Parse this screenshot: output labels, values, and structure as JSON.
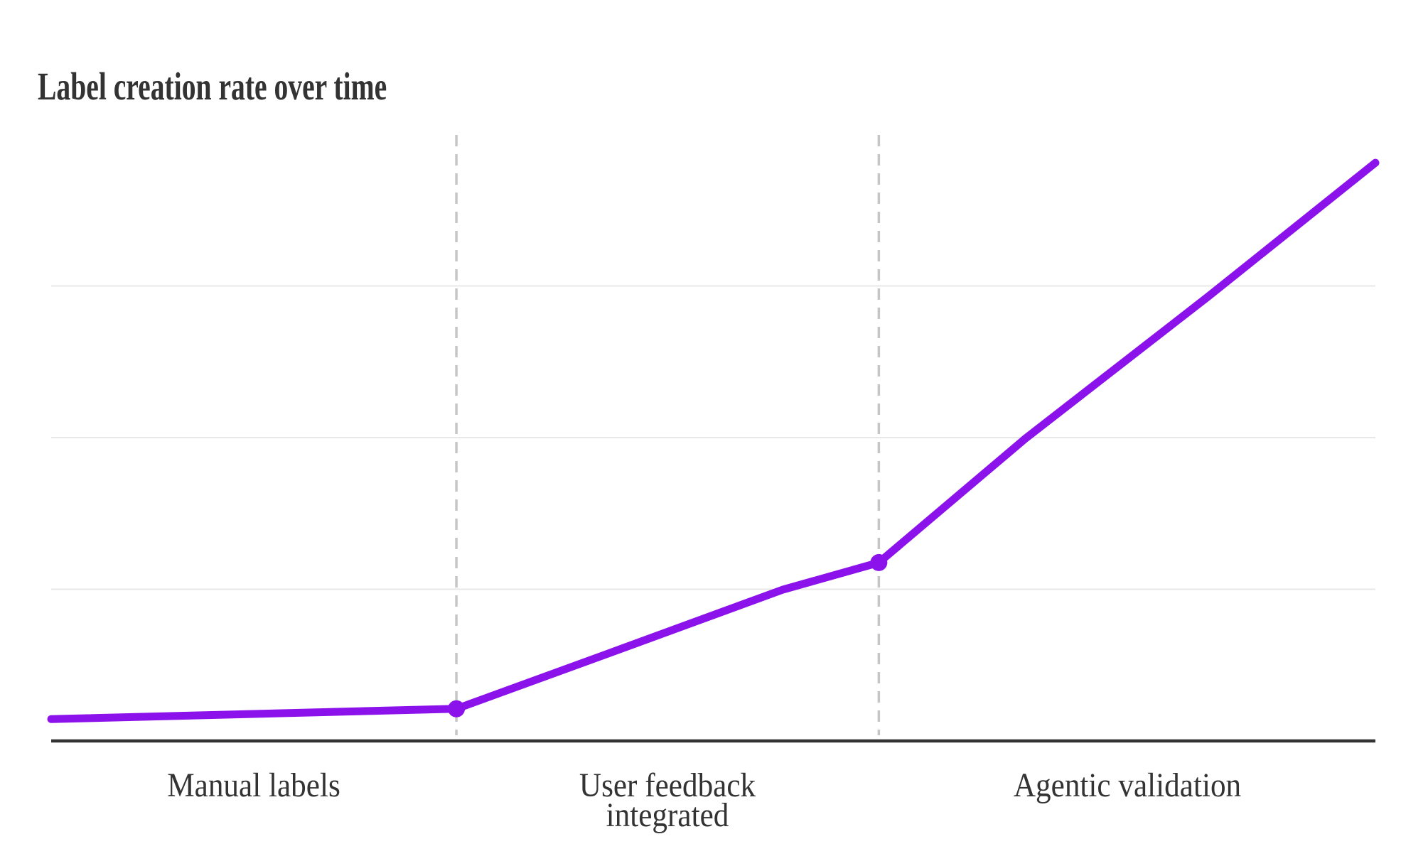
{
  "chart_data": {
    "type": "line",
    "title": "Label creation rate over time",
    "subtitle": "",
    "x_axis": {
      "tick_labels_visible": false,
      "phase_boundaries_x": [
        0.306,
        0.625
      ],
      "phases": [
        {
          "label": "Manual labels",
          "x_start": 0.0,
          "x_end": 0.306
        },
        {
          "label": "User feedback\nintegrated",
          "x_start": 0.306,
          "x_end": 0.625
        },
        {
          "label": "Agentic validation",
          "x_start": 0.625,
          "x_end": 1.0
        }
      ]
    },
    "y_axis": {
      "label": "",
      "tick_labels_visible": false,
      "range": [
        0,
        1
      ],
      "gridlines_y": [
        0.25,
        0.5,
        0.75
      ]
    },
    "grid": "horizontal-only",
    "legend": {
      "visible": false
    },
    "series": [
      {
        "name": "Label creation rate",
        "color": "#8C12EC",
        "points": [
          {
            "x": 0.0,
            "y": 0.036
          },
          {
            "x": 0.306,
            "y": 0.053,
            "marker": true
          },
          {
            "x": 0.418,
            "y": 0.142
          },
          {
            "x": 0.552,
            "y": 0.249
          },
          {
            "x": 0.625,
            "y": 0.294,
            "marker": true
          },
          {
            "x": 0.736,
            "y": 0.499
          },
          {
            "x": 0.874,
            "y": 0.733
          },
          {
            "x": 1.0,
            "y": 0.953
          }
        ]
      }
    ],
    "colors": {
      "series_line": "#8C12EC",
      "marker": "#8C12EC",
      "axis_line": "#333333",
      "gridline": "#e8e8e8",
      "phase_divider": "#c6c6c6",
      "text": "#333333",
      "background": "#ffffff"
    }
  }
}
